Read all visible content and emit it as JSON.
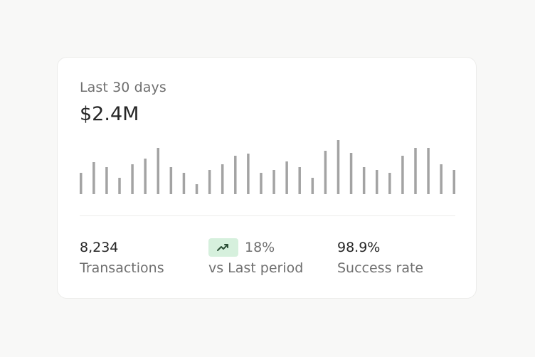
{
  "card": {
    "period_label": "Last 30 days",
    "total_value": "$2.4M"
  },
  "sparkline": {
    "bar_color": "#a3a3a3",
    "values": [
      30,
      45,
      38,
      23,
      42,
      50,
      65,
      38,
      30,
      14,
      34,
      42,
      54,
      57,
      30,
      34,
      46,
      38,
      23,
      61,
      76,
      58,
      38,
      34,
      30,
      54,
      65,
      65,
      42,
      34
    ]
  },
  "stats": {
    "transactions": {
      "value": "8,234",
      "label": "Transactions"
    },
    "change": {
      "icon": "trending-up-icon",
      "value": "18%",
      "label": "vs Last period",
      "badge_color": "#d6f0dd"
    },
    "success": {
      "value": "98.9%",
      "label": "Success rate"
    }
  }
}
